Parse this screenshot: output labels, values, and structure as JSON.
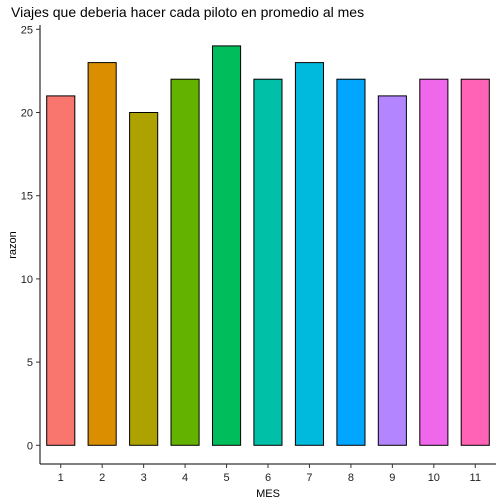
{
  "chart_data": {
    "type": "bar",
    "title": "Viajes que deberia hacer cada piloto en promedio al mes",
    "xlabel": "MES",
    "ylabel": "razon",
    "categories": [
      "1",
      "2",
      "3",
      "4",
      "5",
      "6",
      "7",
      "8",
      "9",
      "10",
      "11"
    ],
    "values": [
      21,
      23,
      20,
      22,
      24,
      22,
      23,
      22,
      21,
      22,
      22
    ],
    "colors": [
      "#F8766D",
      "#DB8E00",
      "#AEA200",
      "#64B200",
      "#00BD5C",
      "#00C1A7",
      "#00BADE",
      "#00A6FF",
      "#B385FF",
      "#EF67EB",
      "#FF63B6"
    ],
    "yticks": [
      0,
      5,
      10,
      15,
      20,
      25
    ],
    "ylim": [
      0,
      25
    ],
    "grid": false,
    "legend": "none"
  }
}
